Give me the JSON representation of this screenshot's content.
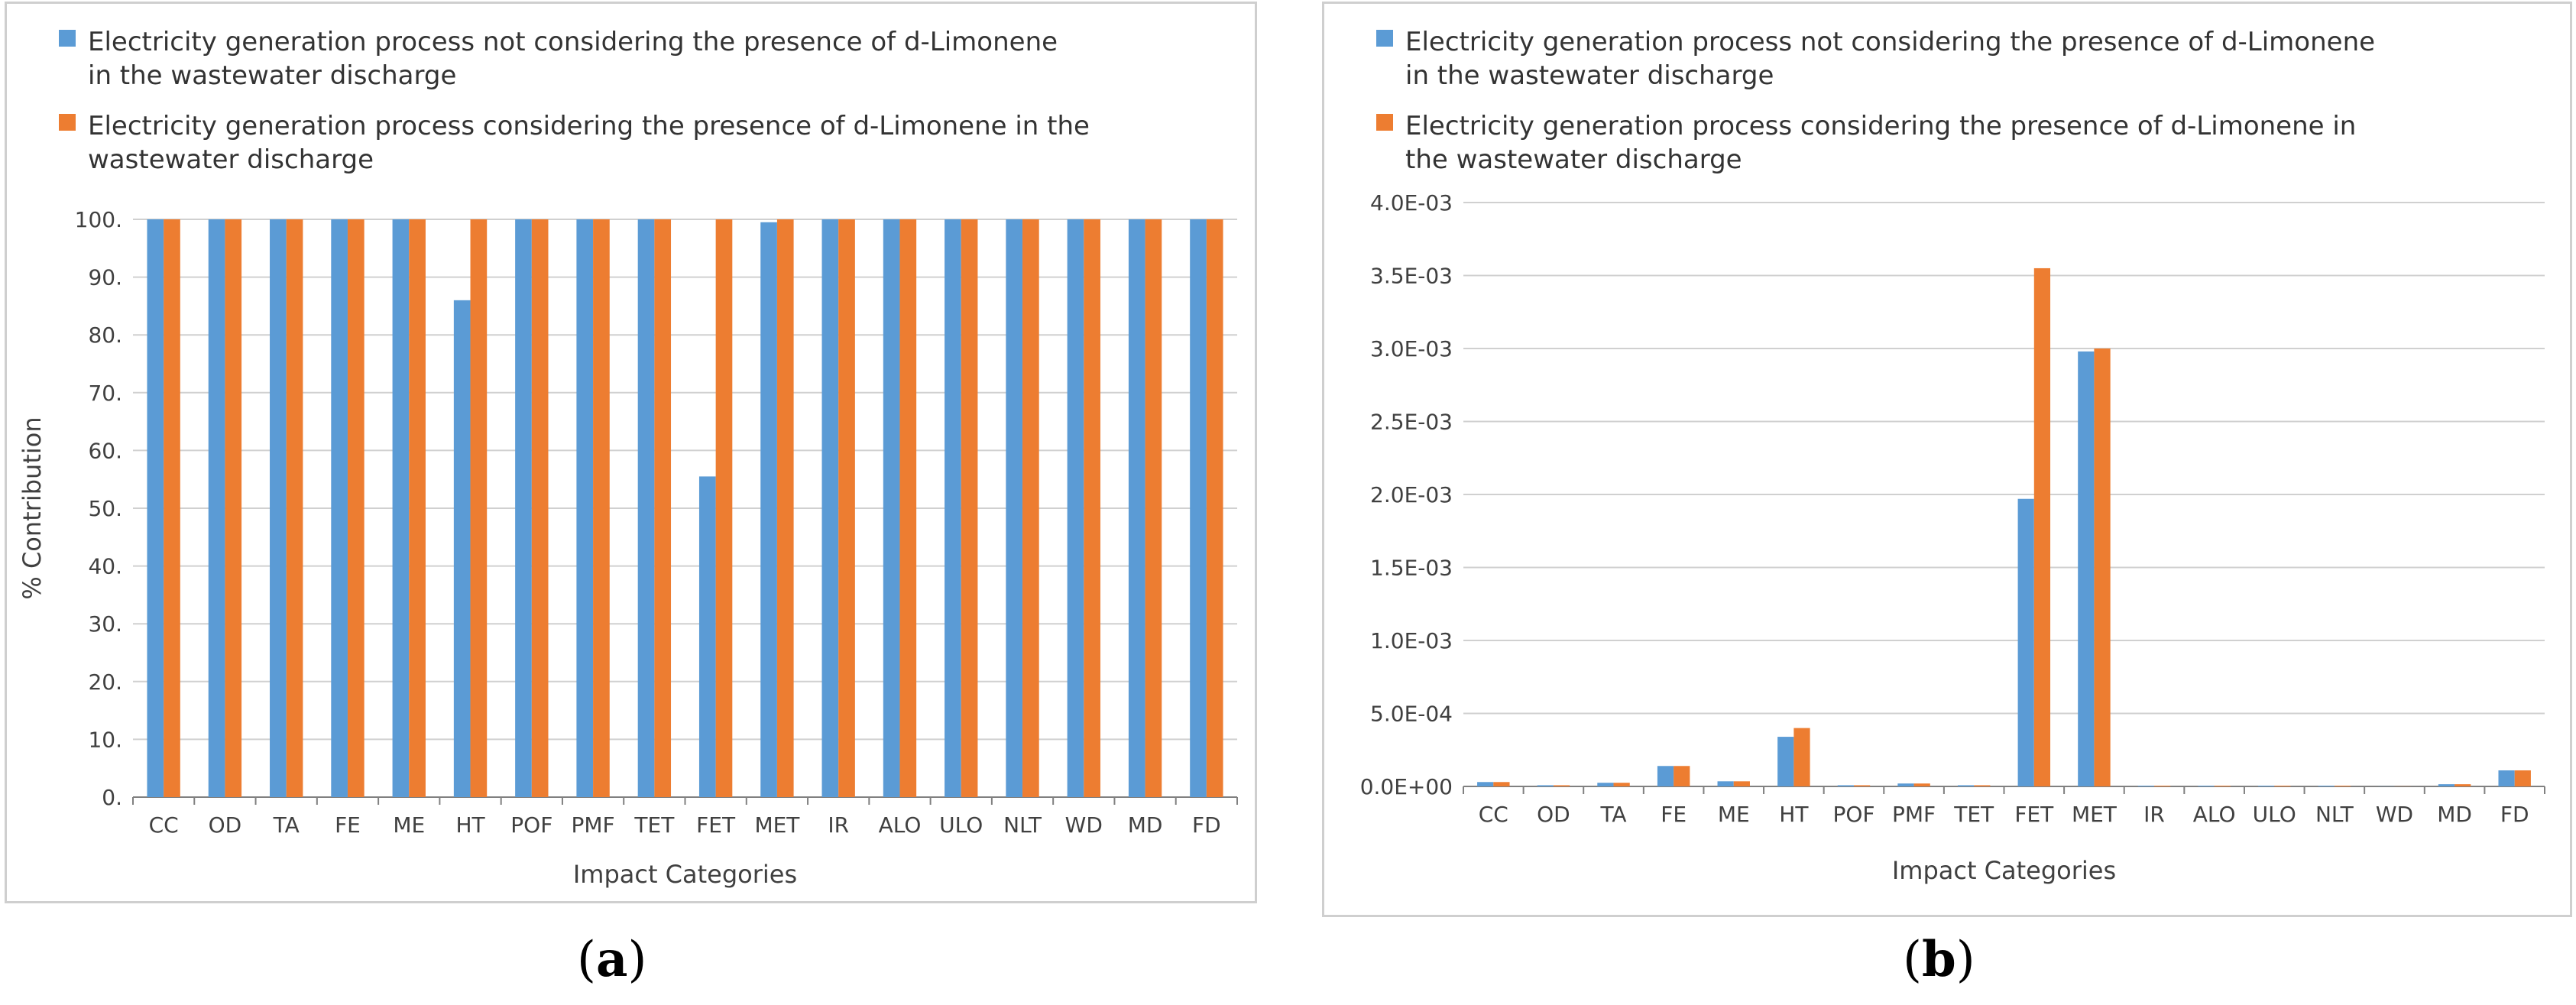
{
  "colors": {
    "series_1": "#5b9bd5",
    "series_2": "#ed7d31",
    "grid": "#d0d0d0",
    "axis": "#808080"
  },
  "chart_data": [
    {
      "type": "bar",
      "panel_label": "a",
      "legend": [
        "Electricity generation process not considering the presence of d-Limonene in the wastewater discharge",
        "Electricity generation process considering the presence of d-Limonene in the wastewater discharge"
      ],
      "legend_lines": [
        [
          "Electricity generation process not considering the presence of d-Limonene",
          "in the wastewater discharge"
        ],
        [
          "Electricity generation process considering the presence of d-Limonene in the",
          "wastewater discharge"
        ]
      ],
      "xlabel": "Impact Categories",
      "ylabel": "% Contribution",
      "ylim": [
        0,
        100
      ],
      "yticks": [
        0,
        10,
        20,
        30,
        40,
        50,
        60,
        70,
        80,
        90,
        100
      ],
      "ytick_labels": [
        "0.",
        "10.",
        "20.",
        "30.",
        "40.",
        "50.",
        "60.",
        "70.",
        "80.",
        "90.",
        "100."
      ],
      "grid": true,
      "legend_position": "top-left",
      "categories": [
        "CC",
        "OD",
        "TA",
        "FE",
        "ME",
        "HT",
        "POF",
        "PMF",
        "TET",
        "FET",
        "MET",
        "IR",
        "ALO",
        "ULO",
        "NLT",
        "WD",
        "MD",
        "FD"
      ],
      "series": [
        {
          "name": "Electricity generation process not considering the presence of d-Limonene in the wastewater discharge",
          "values": [
            100,
            100,
            100,
            100,
            100,
            86,
            100,
            100,
            100,
            55.5,
            99.5,
            100,
            100,
            100,
            100,
            100,
            100,
            100
          ]
        },
        {
          "name": "Electricity generation process considering the presence of d-Limonene in the wastewater discharge",
          "values": [
            100,
            100,
            100,
            100,
            100,
            100,
            100,
            100,
            100,
            100,
            100,
            100,
            100,
            100,
            100,
            100,
            100,
            100
          ]
        }
      ]
    },
    {
      "type": "bar",
      "panel_label": "b",
      "legend": [
        "Electricity generation process not considering the presence of d-Limonene in the wastewater discharge",
        "Electricity generation process considering the presence of d-Limonene in the wastewater discharge"
      ],
      "legend_lines": [
        [
          "Electricity generation process not considering the presence of d-Limonene",
          "in the wastewater discharge"
        ],
        [
          "Electricity generation process considering the presence of d-Limonene in",
          "the wastewater discharge"
        ]
      ],
      "xlabel": "Impact Categories",
      "ylabel": "",
      "ylim": [
        0,
        0.004
      ],
      "yticks": [
        0,
        0.0005,
        0.001,
        0.0015,
        0.002,
        0.0025,
        0.003,
        0.0035,
        0.004
      ],
      "ytick_labels": [
        "0.0E+00",
        "5.0E-04",
        "1.0E-03",
        "1.5E-03",
        "2.0E-03",
        "2.5E-03",
        "3.0E-03",
        "3.5E-03",
        "4.0E-03"
      ],
      "grid": true,
      "legend_position": "top-left",
      "categories": [
        "CC",
        "OD",
        "TA",
        "FE",
        "ME",
        "HT",
        "POF",
        "PMF",
        "TET",
        "FET",
        "MET",
        "IR",
        "ALO",
        "ULO",
        "NLT",
        "WD",
        "MD",
        "FD"
      ],
      "series": [
        {
          "name": "Electricity generation process not considering the presence of d-Limonene in the wastewater discharge",
          "values": [
            3e-05,
            8e-06,
            2.5e-05,
            0.00014,
            3.5e-05,
            0.00034,
            8e-06,
            2e-05,
            8e-06,
            0.00197,
            0.00298,
            5e-06,
            5e-06,
            5e-06,
            5e-06,
            1e-06,
            1.5e-05,
            0.00011
          ]
        },
        {
          "name": "Electricity generation process considering the presence of d-Limonene in the wastewater discharge",
          "values": [
            3e-05,
            8e-06,
            2.5e-05,
            0.00014,
            3.5e-05,
            0.0004,
            8e-06,
            2e-05,
            8e-06,
            0.00355,
            0.003,
            5e-06,
            5e-06,
            5e-06,
            5e-06,
            1e-06,
            1.5e-05,
            0.00011
          ]
        }
      ]
    }
  ]
}
